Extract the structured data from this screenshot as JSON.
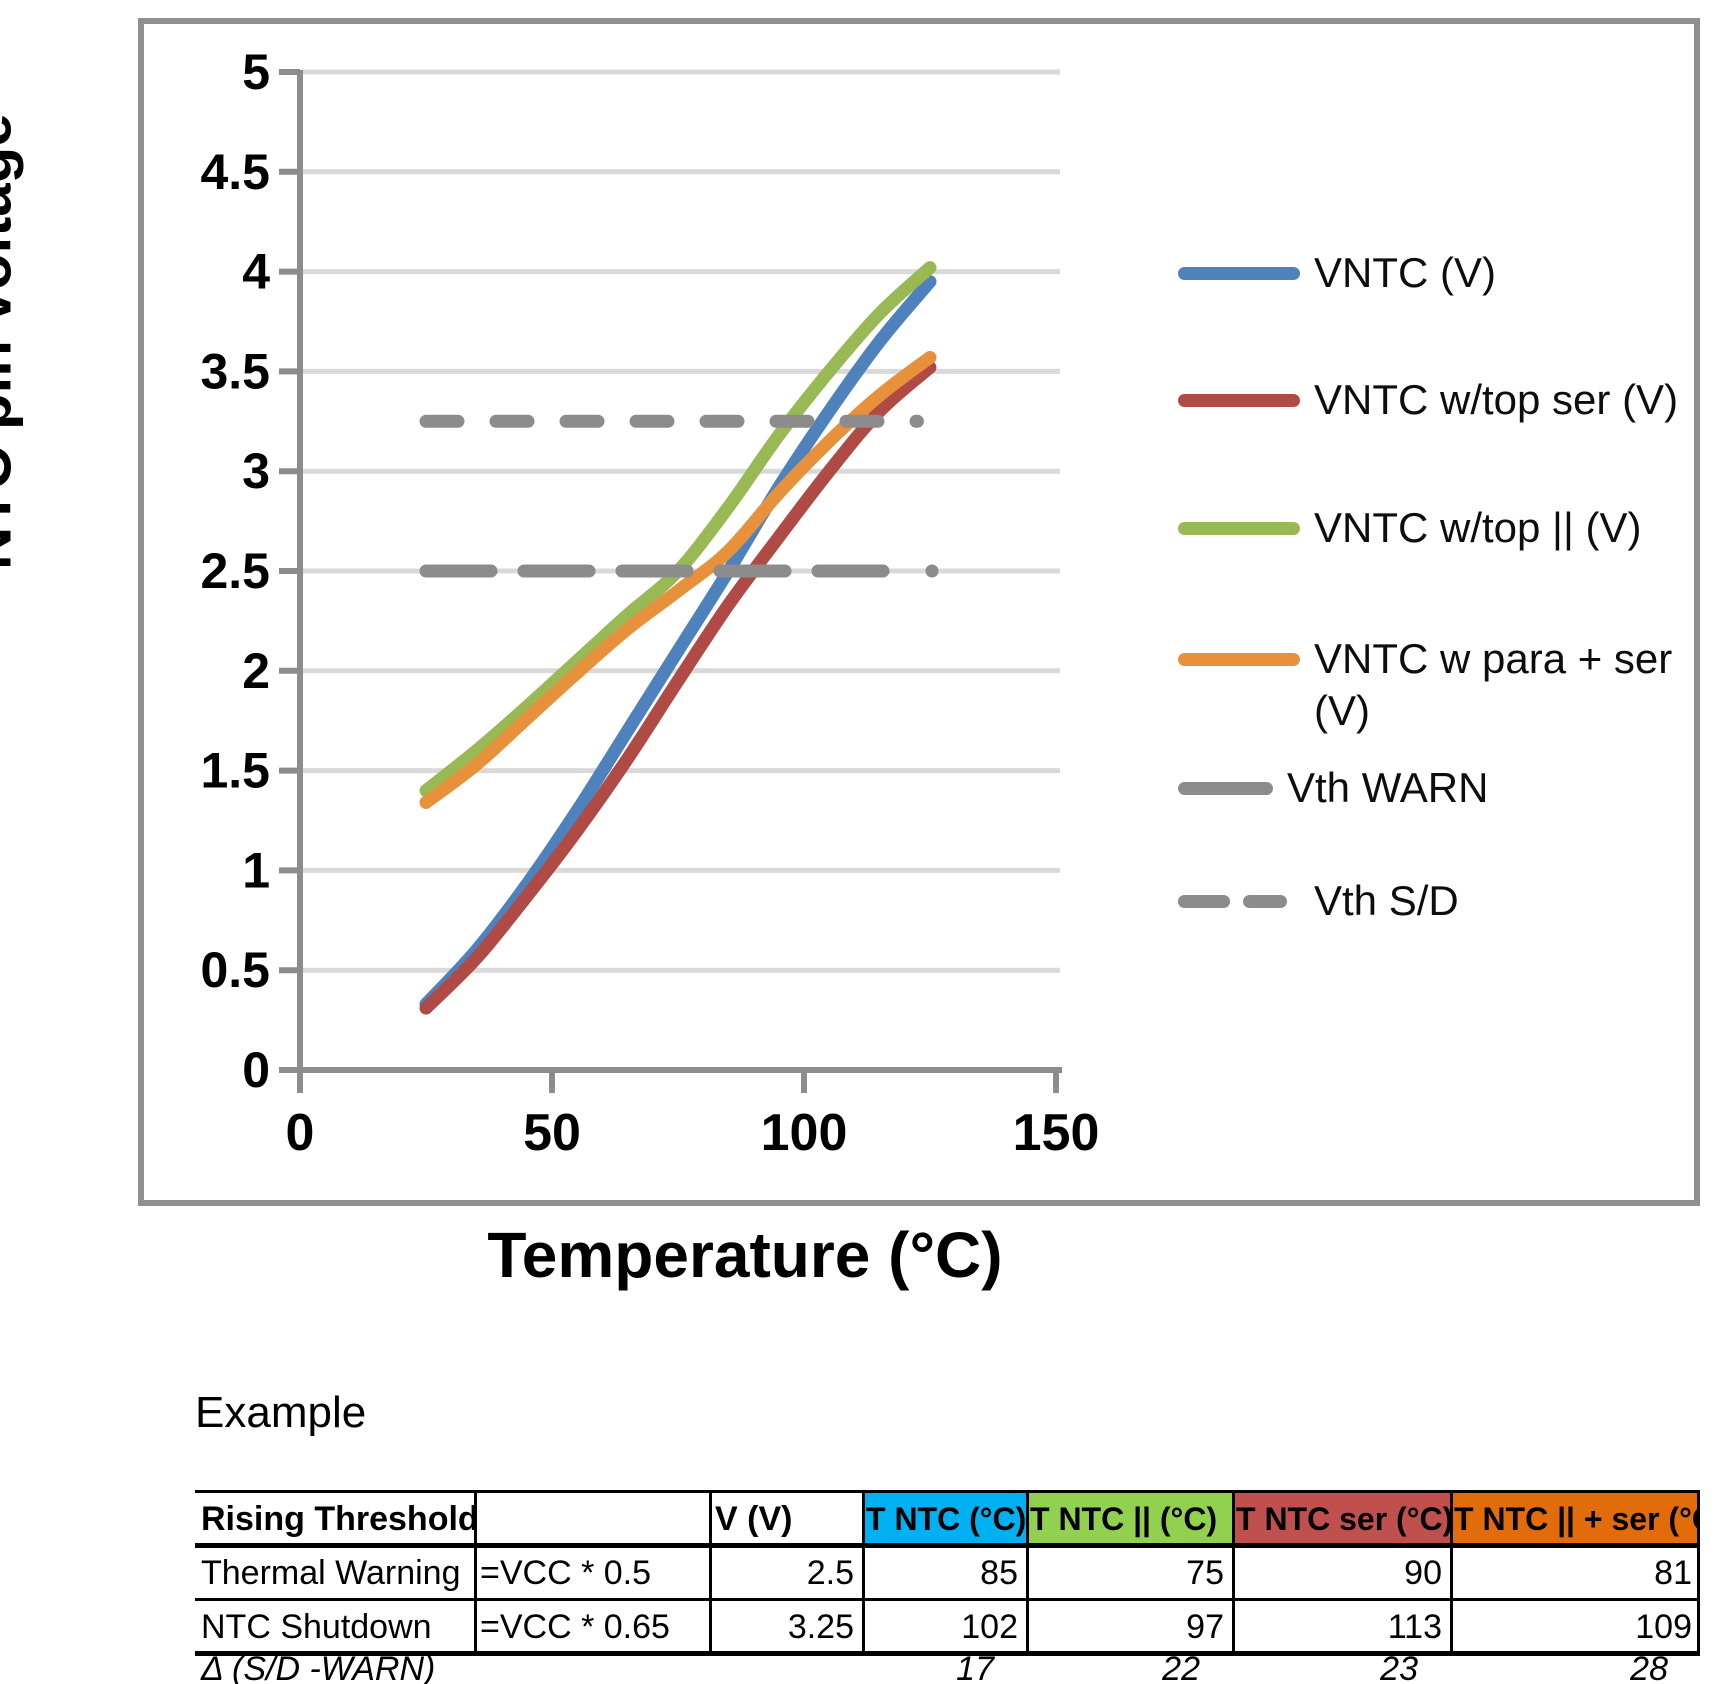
{
  "chart_data": {
    "type": "line",
    "title": "",
    "xlabel": "Temperature (°C)",
    "ylabel": "NTC pin voltage",
    "xlim": [
      0,
      150
    ],
    "ylim": [
      0,
      5
    ],
    "x_ticks": [
      0,
      50,
      100,
      150
    ],
    "y_ticks": [
      "0",
      "0.5",
      "1",
      "1.5",
      "2",
      "2.5",
      "3",
      "3.5",
      "4",
      "4.5",
      "5"
    ],
    "grid": "horizontal",
    "legend_position": "right",
    "axis_color": "#8c8c8c",
    "gridline_color": "#d9d9d9",
    "series": [
      {
        "name": "VNTC (V)",
        "color": "#4F81BD",
        "style": "solid",
        "x": [
          25,
          35,
          45,
          55,
          65,
          75,
          85,
          95,
          105,
          115,
          125
        ],
        "y": [
          0.33,
          0.6,
          0.93,
          1.3,
          1.7,
          2.1,
          2.5,
          2.92,
          3.3,
          3.65,
          3.95
        ]
      },
      {
        "name": "VNTC w/top ser (V)",
        "color": "#B04A44",
        "style": "solid",
        "x": [
          25,
          35,
          45,
          55,
          65,
          75,
          85,
          95,
          105,
          115,
          125
        ],
        "y": [
          0.31,
          0.56,
          0.87,
          1.2,
          1.56,
          1.95,
          2.33,
          2.67,
          3.0,
          3.3,
          3.52
        ]
      },
      {
        "name": "VNTC w/top || (V)",
        "color": "#98B954",
        "style": "solid",
        "x": [
          25,
          35,
          45,
          55,
          65,
          75,
          85,
          95,
          105,
          115,
          125
        ],
        "y": [
          1.4,
          1.6,
          1.82,
          2.05,
          2.28,
          2.5,
          2.82,
          3.18,
          3.5,
          3.79,
          4.02
        ]
      },
      {
        "name": "VNTC w para + ser (V)",
        "color": "#E8913D",
        "style": "solid",
        "x": [
          25,
          35,
          45,
          55,
          65,
          75,
          85,
          95,
          105,
          115,
          125
        ],
        "y": [
          1.34,
          1.53,
          1.76,
          1.99,
          2.21,
          2.4,
          2.6,
          2.89,
          3.15,
          3.38,
          3.57
        ]
      },
      {
        "name": "Vth WARN",
        "color": "#8C8C8C",
        "style": "long-dash",
        "y_value": 2.5,
        "x_range": [
          25,
          122
        ],
        "end_dot_x": 125.4
      },
      {
        "name": "Vth S/D",
        "color": "#8C8C8C",
        "style": "dash",
        "y_value": 3.25,
        "x_range": [
          25,
          122.5
        ]
      }
    ]
  },
  "example": {
    "title": "Example",
    "table": {
      "headers": [
        {
          "label": "Rising Thresholds",
          "bg": ""
        },
        {
          "label": "",
          "bg": ""
        },
        {
          "label": "V (V)",
          "bg": ""
        },
        {
          "label": "T NTC (°C)",
          "bg": "#00B0F0"
        },
        {
          "label": "T NTC || (°C)",
          "bg": "#92D050"
        },
        {
          "label": "T NTC ser (°C)",
          "bg": "#C0504D"
        },
        {
          "label": "T NTC || + ser (°C)",
          "bg": "#E26B0A"
        }
      ],
      "rows": [
        [
          "Thermal Warning",
          "=VCC * 0.5",
          "2.5",
          "85",
          "75",
          "90",
          "81"
        ],
        [
          "NTC Shutdown",
          "=VCC * 0.65",
          "3.25",
          "102",
          "97",
          "113",
          "109"
        ]
      ],
      "delta": [
        "Δ (S/D -WARN)",
        "",
        "",
        "17",
        "22",
        "23",
        "28"
      ]
    }
  }
}
